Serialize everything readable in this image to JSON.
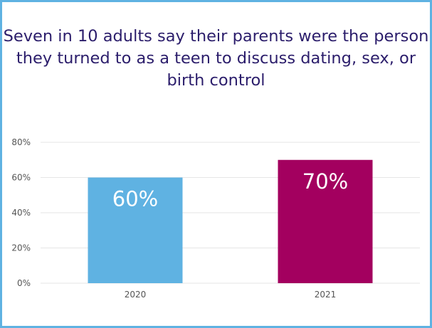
{
  "chart_data": {
    "type": "bar",
    "title": "Seven in 10 adults say their parents were the person they turned to as a teen to discuss dating, sex, or birth control",
    "categories": [
      "2020",
      "2021"
    ],
    "values": [
      60,
      70
    ],
    "data_labels": [
      "60%",
      "70%"
    ],
    "bar_colors": [
      "#5fb2e2",
      "#a3005f"
    ],
    "ylim": [
      0,
      80
    ],
    "yticks": [
      0,
      20,
      40,
      60,
      80
    ],
    "ytick_labels": [
      "0%",
      "20%",
      "40%",
      "60%",
      "80%"
    ],
    "xlabel": "",
    "ylabel": "",
    "grid": true,
    "legend": "none"
  },
  "colors": {
    "border": "#5fb2e2",
    "title": "#2b1d6b",
    "grid": "#e6e6e6",
    "tick_text": "#555555"
  }
}
